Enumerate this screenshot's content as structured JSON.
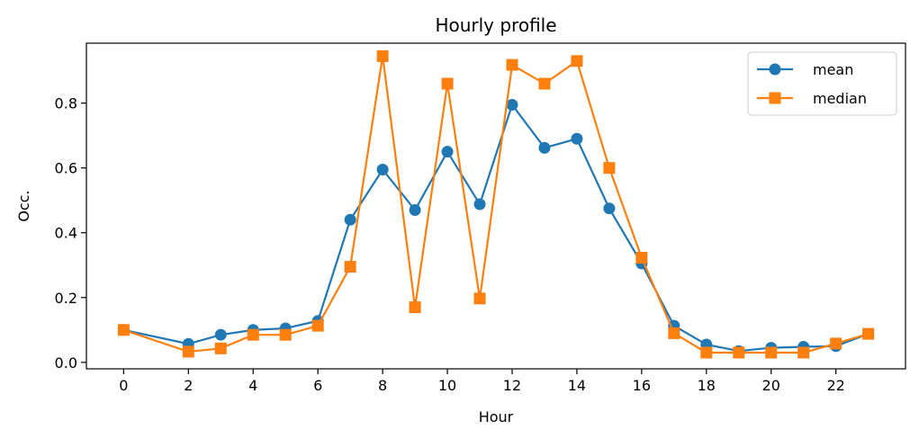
{
  "chart_data": {
    "type": "line",
    "title": "Hourly profile",
    "xlabel": "Hour",
    "ylabel": "Occ.",
    "xlim": [
      -1.15,
      24.15
    ],
    "ylim": [
      -0.02,
      0.985
    ],
    "xticks": [
      0,
      2,
      4,
      6,
      8,
      10,
      12,
      14,
      16,
      18,
      20,
      22
    ],
    "xtick_labels": [
      "0",
      "2",
      "4",
      "6",
      "8",
      "10",
      "12",
      "14",
      "16",
      "18",
      "20",
      "22"
    ],
    "yticks": [
      0.0,
      0.2,
      0.4,
      0.6,
      0.8
    ],
    "ytick_labels": [
      "0.0",
      "0.2",
      "0.4",
      "0.6",
      "0.8"
    ],
    "grid": false,
    "legend_position": "top-right",
    "series": [
      {
        "name": "mean",
        "color": "#1f77b4",
        "marker": "circle",
        "x": [
          0,
          2,
          3,
          4,
          5,
          6,
          7,
          8,
          9,
          10,
          11,
          12,
          13,
          14,
          15,
          16,
          17,
          18,
          19,
          20,
          21,
          22,
          23
        ],
        "values": [
          0.1,
          0.057,
          0.085,
          0.1,
          0.105,
          0.128,
          0.44,
          0.595,
          0.47,
          0.65,
          0.488,
          0.795,
          0.662,
          0.69,
          0.475,
          0.305,
          0.113,
          0.055,
          0.035,
          0.045,
          0.048,
          0.05,
          0.088
        ]
      },
      {
        "name": "median",
        "color": "#ff7f0e",
        "marker": "square",
        "x": [
          0,
          2,
          3,
          4,
          5,
          6,
          7,
          8,
          9,
          10,
          11,
          12,
          13,
          14,
          15,
          16,
          17,
          18,
          19,
          20,
          21,
          22,
          23
        ],
        "values": [
          0.1,
          0.033,
          0.043,
          0.085,
          0.085,
          0.113,
          0.295,
          0.945,
          0.17,
          0.86,
          0.197,
          0.918,
          0.86,
          0.93,
          0.6,
          0.323,
          0.09,
          0.03,
          0.03,
          0.03,
          0.03,
          0.058,
          0.088
        ]
      }
    ]
  }
}
